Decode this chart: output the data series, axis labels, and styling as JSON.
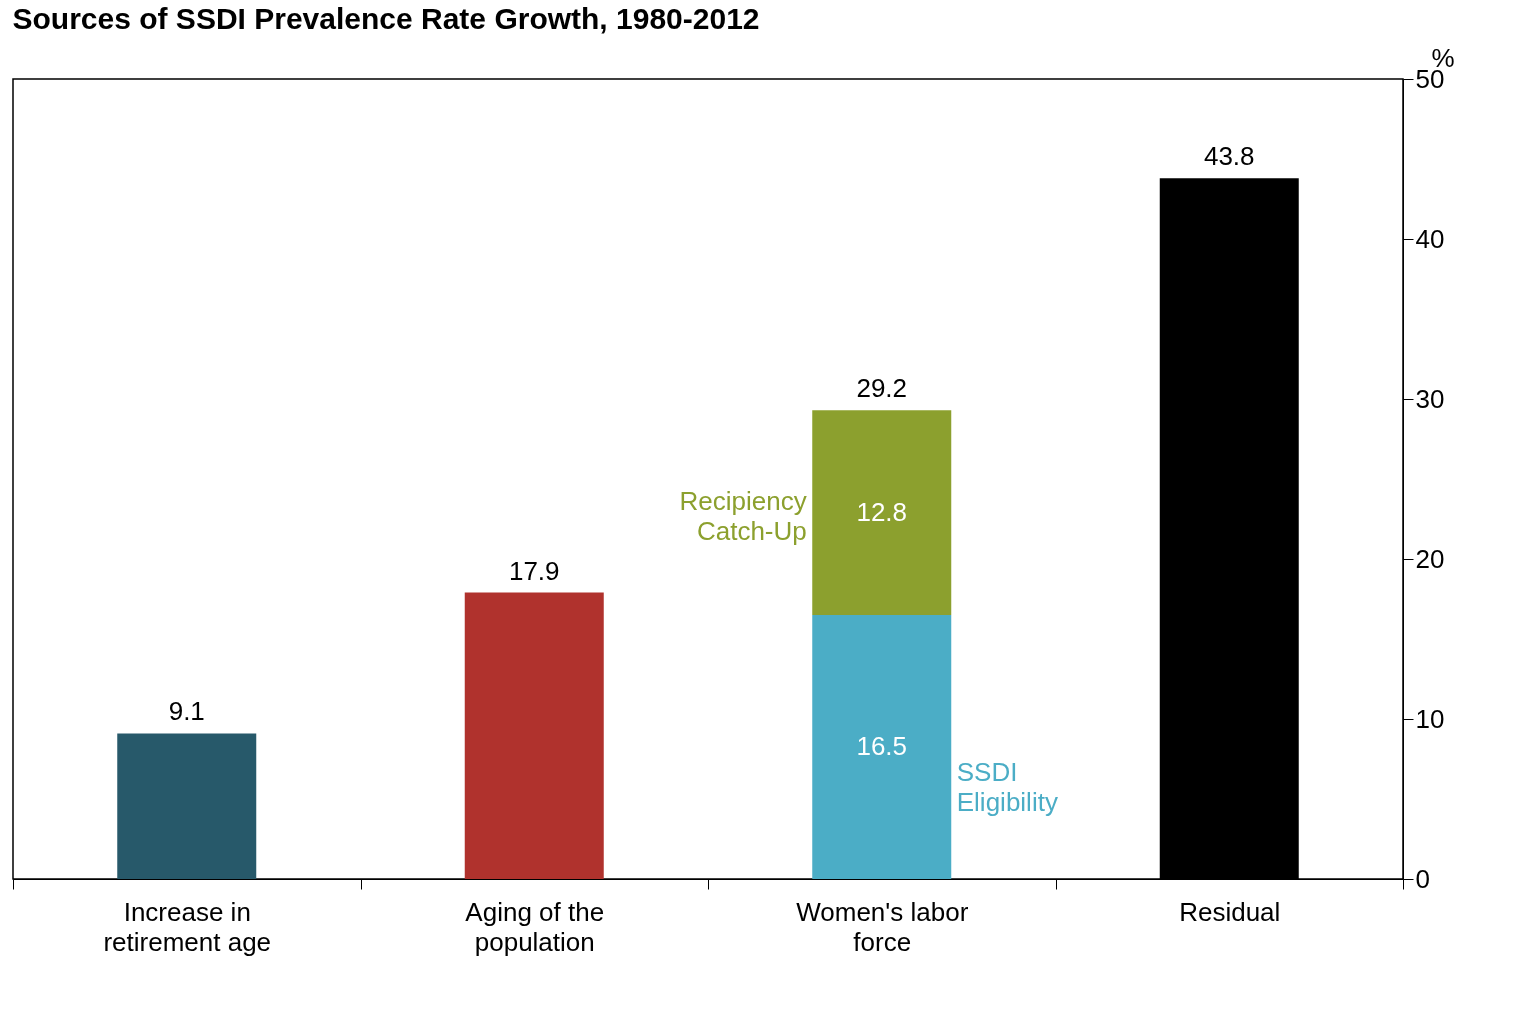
{
  "chart_data": {
    "type": "bar",
    "title": "Sources of SSDI Prevalence Rate Growth, 1980-2012",
    "ylabel": "%",
    "categories": [
      "Increase in retirement age",
      "Aging of the population",
      "Women's labor force",
      "Residual"
    ],
    "stacked": true,
    "series": [
      {
        "colors": [
          "#27596a",
          "#b0322d",
          null,
          "#000000"
        ],
        "values": [
          9.1,
          17.9,
          null,
          43.8
        ]
      },
      {
        "name": "SSDI Eligibility",
        "color": "#4badc6",
        "values": [
          null,
          null,
          16.5,
          null
        ]
      },
      {
        "name": "Recipiency Catch-Up",
        "color": "#8ca02e",
        "values": [
          null,
          null,
          12.8,
          null
        ]
      }
    ],
    "totals": [
      null,
      null,
      "29.2",
      null
    ],
    "data_labels": true,
    "ylim": [
      0,
      50
    ],
    "yticks": [
      0,
      10,
      20,
      30,
      40,
      50
    ],
    "grid": false
  }
}
